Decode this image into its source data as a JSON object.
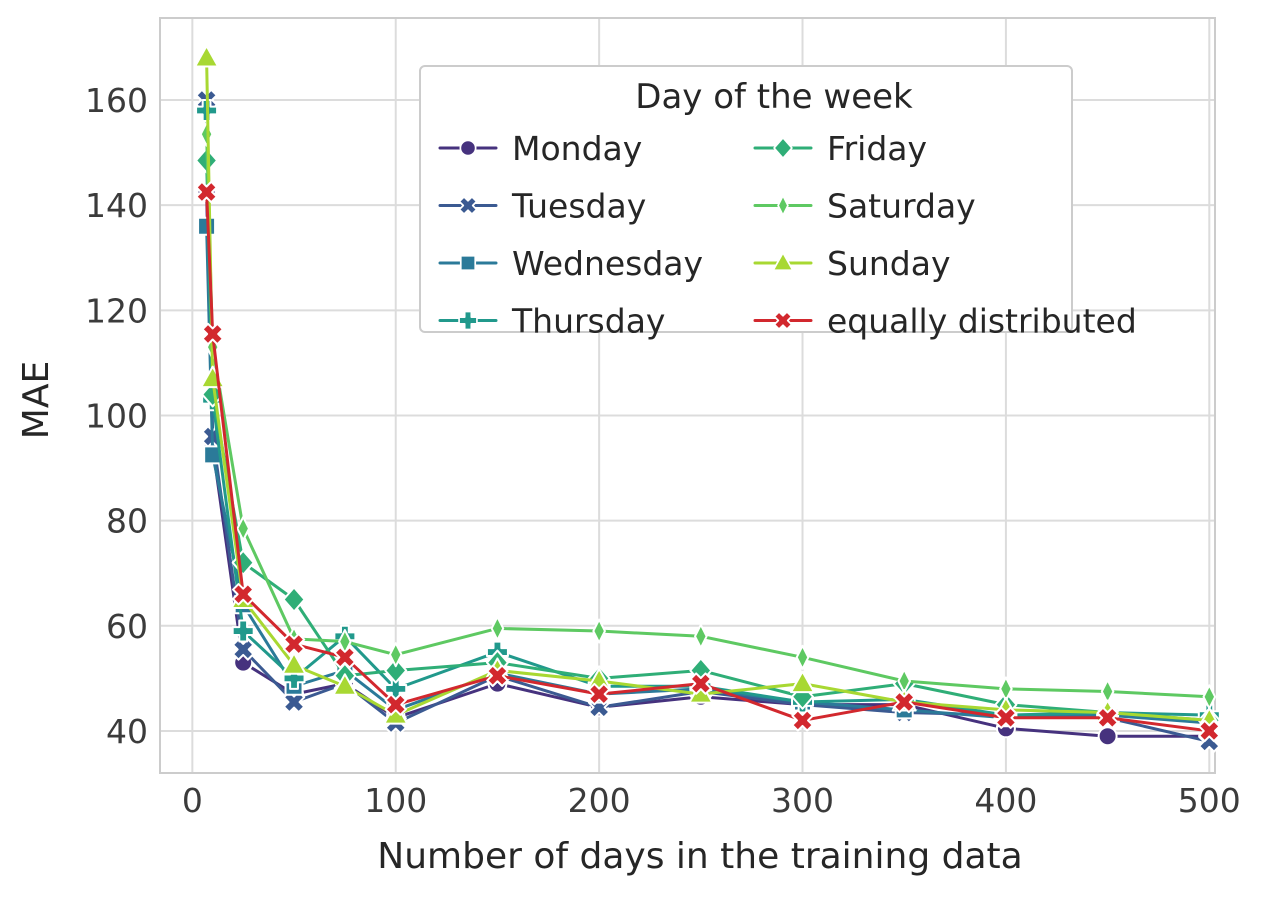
{
  "figure": {
    "background": "#ffffff"
  },
  "chart_data": {
    "type": "line",
    "title": "",
    "xlabel": "Number of days in the training data",
    "ylabel": "MAE",
    "legend_title": "Day of the week",
    "legend_position": "upper center",
    "legend_columns": 2,
    "grid": true,
    "xlim": [
      -15.9,
      502.8
    ],
    "ylim": [
      32.0,
      175.6
    ],
    "xticks": [
      "0",
      "100",
      "200",
      "300",
      "400",
      "500"
    ],
    "yticks": [
      "40",
      "60",
      "80",
      "100",
      "120",
      "140",
      "160"
    ],
    "xtick_values": [
      0,
      100,
      200,
      300,
      400,
      500
    ],
    "ytick_values": [
      40,
      60,
      80,
      100,
      120,
      140,
      160
    ],
    "x": [
      7,
      10,
      25,
      50,
      75,
      100,
      150,
      200,
      250,
      300,
      350,
      400,
      450,
      500
    ],
    "series": [
      {
        "name": "Monday",
        "color": "#46327e",
        "marker": "circle",
        "values": [
          142.5,
          94,
          53,
          47,
          49,
          42.5,
          49,
          44.5,
          46.5,
          45,
          45,
          40.5,
          39,
          39
        ]
      },
      {
        "name": "Tuesday",
        "color": "#3b5a92",
        "marker": "x",
        "values": [
          160,
          96,
          55.5,
          45.5,
          49,
          41.5,
          50.5,
          44.5,
          47.5,
          45,
          43.5,
          43,
          42.5,
          38
        ]
      },
      {
        "name": "Wednesday",
        "color": "#2b7a99",
        "marker": "square",
        "values": [
          136,
          92.5,
          64,
          48.5,
          51.5,
          44,
          51,
          47,
          48,
          45.5,
          44,
          42.5,
          43,
          41.5
        ]
      },
      {
        "name": "Thursday",
        "color": "#21998c",
        "marker": "plus",
        "values": [
          158,
          103,
          59,
          50,
          58,
          48,
          55,
          48.5,
          48.5,
          45.5,
          46,
          43,
          43.5,
          43
        ]
      },
      {
        "name": "Friday",
        "color": "#2fae77",
        "marker": "diamond",
        "values": [
          148.5,
          104,
          72,
          65,
          50.5,
          51.5,
          53,
          50,
          51.5,
          46.5,
          49,
          45,
          43.5,
          42
        ]
      },
      {
        "name": "Saturday",
        "color": "#5ec962",
        "marker": "thin-diamond",
        "values": [
          153.5,
          113,
          78.5,
          57.5,
          57,
          54.5,
          59.5,
          59,
          58,
          54,
          49.5,
          48,
          47.5,
          46.5
        ]
      },
      {
        "name": "Sunday",
        "color": "#a8d832",
        "marker": "triangle",
        "values": [
          168,
          107,
          65,
          52.5,
          48.5,
          43,
          51.5,
          49.5,
          47,
          49,
          45.5,
          44,
          43.5,
          42
        ]
      },
      {
        "name": "equally distributed",
        "color": "#d2282e",
        "marker": "x",
        "values": [
          142.5,
          115.5,
          66,
          56.5,
          54,
          45,
          50.5,
          47,
          49,
          42,
          45.5,
          42.5,
          42.5,
          40
        ]
      }
    ]
  },
  "style": {
    "grid_color": "#dcdcdc",
    "spine_color": "#cccccc",
    "text_color": "#262626",
    "tick_text_color": "#3b3b3b",
    "legend_border_color": "#cccccc",
    "marker_edge_color": "#ffffff"
  }
}
